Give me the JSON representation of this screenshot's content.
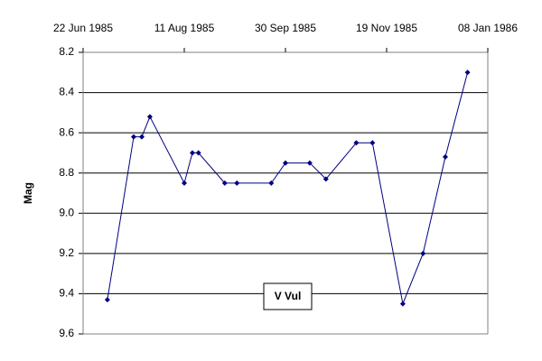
{
  "chart_data": {
    "type": "line",
    "x": [
      "1985-07-04",
      "1985-07-17",
      "1985-07-21",
      "1985-07-25",
      "1985-08-11",
      "1985-08-15",
      "1985-08-18",
      "1985-08-31",
      "1985-09-06",
      "1985-09-23",
      "1985-09-30",
      "1985-10-12",
      "1985-10-20",
      "1985-11-04",
      "1985-11-12",
      "1985-11-27",
      "1985-12-07",
      "1985-12-18",
      "1985-12-29"
    ],
    "series": [
      {
        "name": "V Vul",
        "color": "#000080",
        "values": [
          9.43,
          8.62,
          8.62,
          8.52,
          8.85,
          8.7,
          8.7,
          8.85,
          8.85,
          8.85,
          8.75,
          8.75,
          8.83,
          8.65,
          8.65,
          9.45,
          9.2,
          8.72,
          8.3
        ]
      }
    ],
    "ylabel": "Mag",
    "xlim": [
      "1985-06-22",
      "1986-01-08"
    ],
    "xticks": [
      {
        "value": "1985-06-22",
        "label": "22 Jun 1985"
      },
      {
        "value": "1985-08-11",
        "label": "11 Aug 1985"
      },
      {
        "value": "1985-09-30",
        "label": "30 Sep 1985"
      },
      {
        "value": "1985-11-19",
        "label": "19 Nov 1985"
      },
      {
        "value": "1986-01-08",
        "label": "08 Jan 1986"
      }
    ],
    "ylim": [
      8.2,
      9.6
    ],
    "yticks": [
      8.2,
      8.4,
      8.6,
      8.8,
      {
        "value": 9,
        "label": "9.0"
      },
      9.2,
      9.4,
      9.6
    ],
    "y_inverted": true,
    "grid": true
  }
}
